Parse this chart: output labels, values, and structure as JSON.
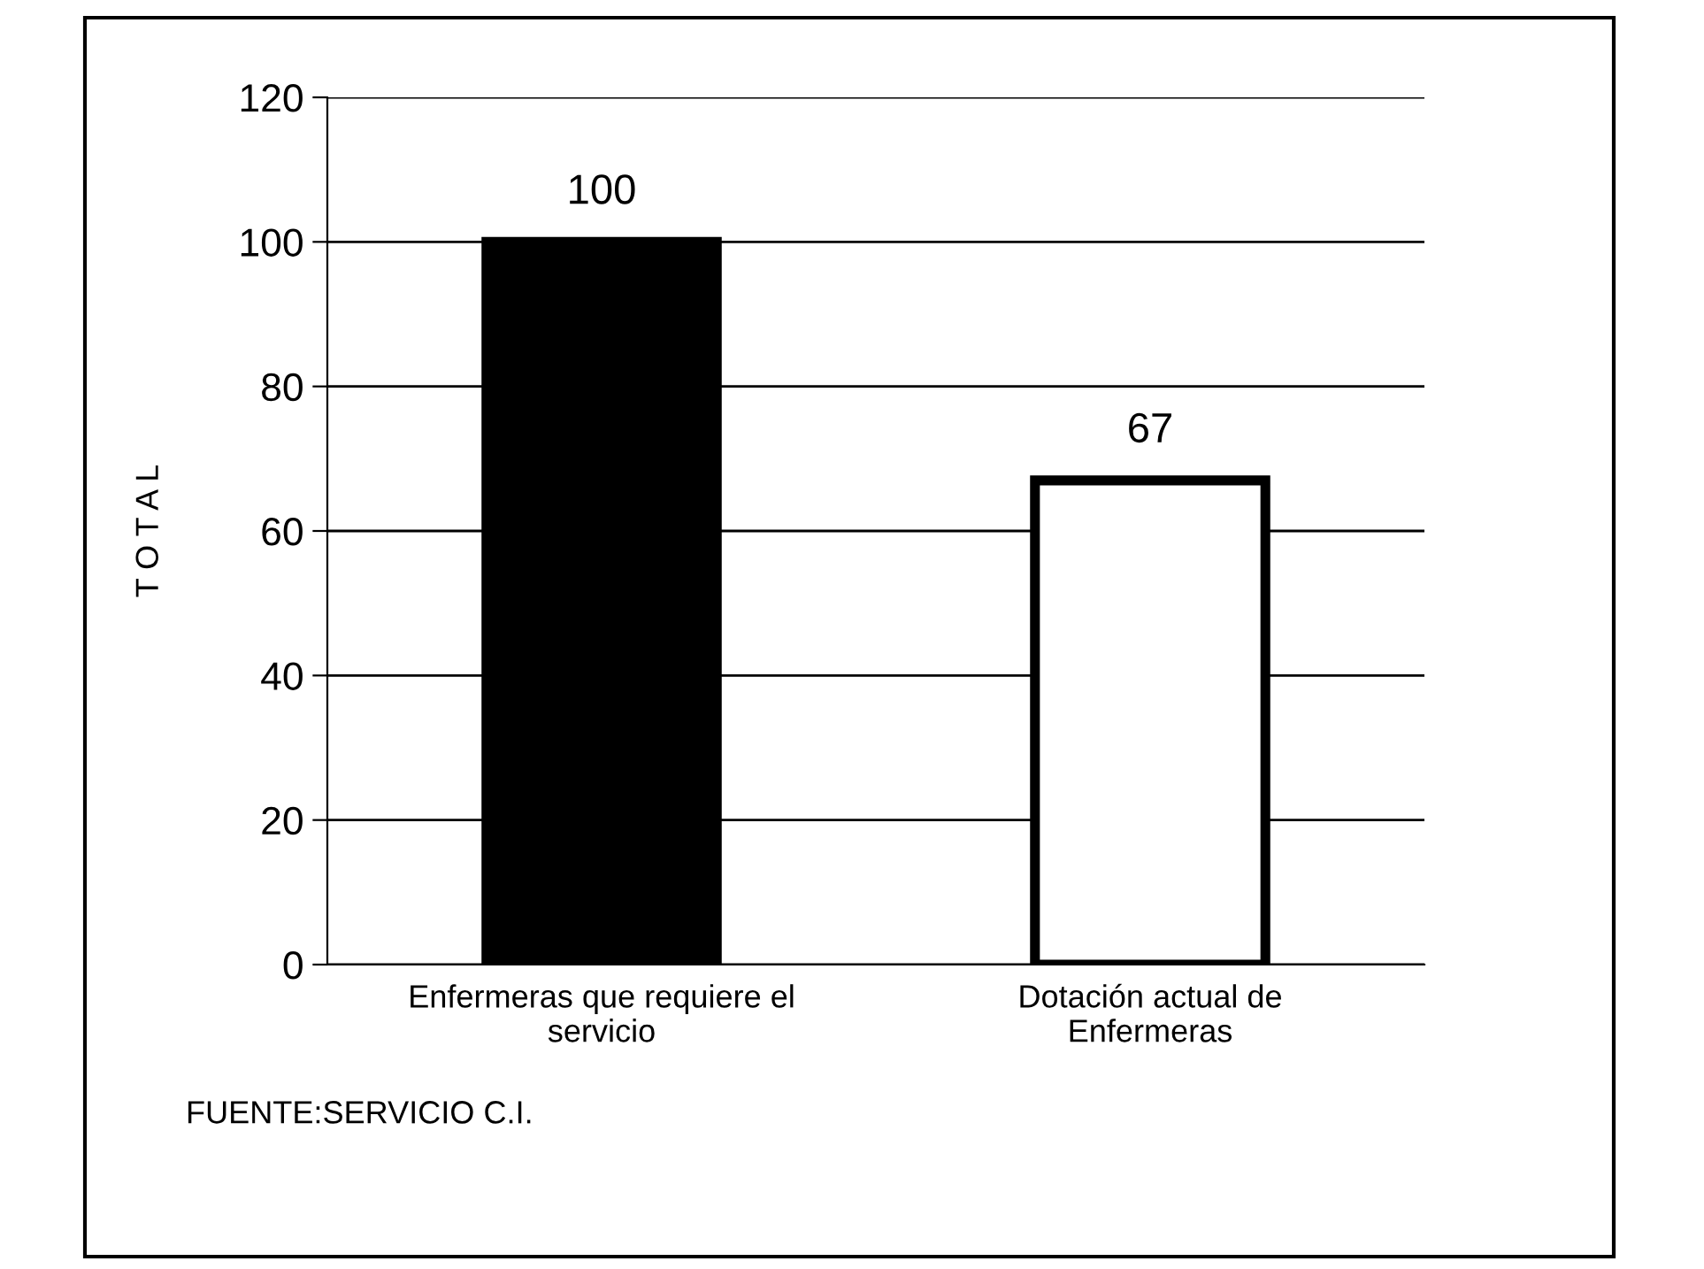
{
  "chart_data": {
    "type": "bar",
    "categories": [
      "Enfermeras que requiere el servicio",
      "Dotación actual de Enfermeras"
    ],
    "values": [
      100,
      67
    ],
    "colors": [
      "#000000",
      "#ffffff"
    ],
    "ylabel": "T O T A L",
    "ylim": [
      0,
      120
    ],
    "yticks": [
      0,
      20,
      40,
      60,
      80,
      100,
      120
    ],
    "grid": "y",
    "data_labels": true,
    "legend": false,
    "annotations": [
      "FUENTE:SERVICIO C.I."
    ]
  }
}
